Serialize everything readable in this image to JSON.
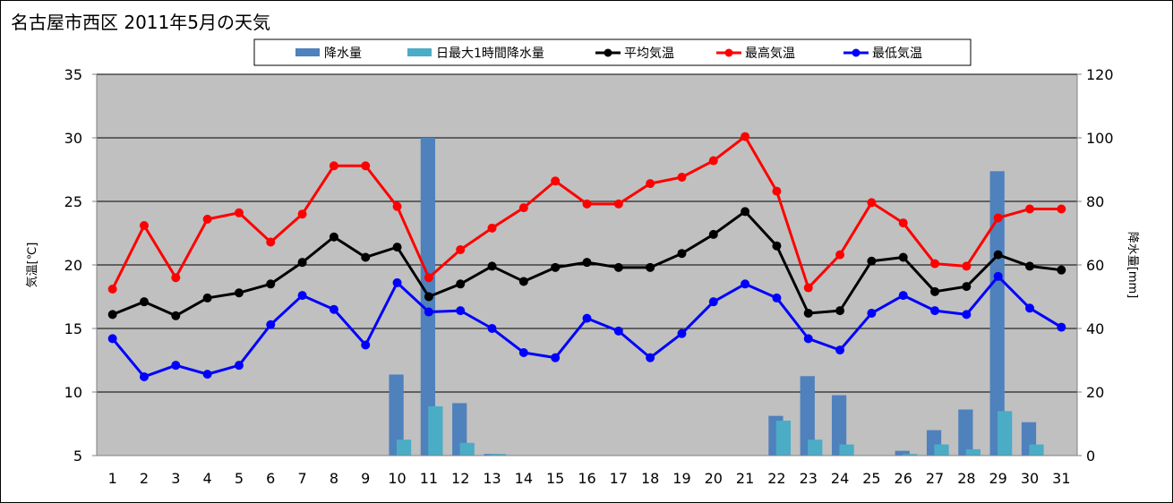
{
  "chart_data": {
    "type": "combo-bar-line",
    "title": "名古屋市西区  2011年5月の天気",
    "categories": [
      "1",
      "2",
      "3",
      "4",
      "5",
      "6",
      "7",
      "8",
      "9",
      "10",
      "11",
      "12",
      "13",
      "14",
      "15",
      "16",
      "17",
      "18",
      "19",
      "20",
      "21",
      "22",
      "23",
      "24",
      "25",
      "26",
      "27",
      "28",
      "29",
      "30",
      "31"
    ],
    "y_left": {
      "label": "気温[℃]",
      "range": [
        5,
        35
      ],
      "ticks": [
        "5",
        "10",
        "15",
        "20",
        "25",
        "30",
        "35"
      ]
    },
    "y_right": {
      "label": "降水量[mm]",
      "range": [
        0,
        120
      ],
      "ticks": [
        "0",
        "20",
        "40",
        "60",
        "80",
        "100",
        "120"
      ]
    },
    "grid": true,
    "legend_position": "top",
    "bar_series": [
      {
        "name": "降水量",
        "color": "#4f81bd",
        "axis": "right",
        "values": [
          0,
          0,
          0,
          0,
          0,
          0,
          0,
          0,
          0,
          25.5,
          100,
          16.5,
          0.5,
          0,
          0,
          0,
          0,
          0,
          0,
          0,
          0,
          12.5,
          25,
          19,
          0,
          1.5,
          8,
          14.5,
          89.5,
          10.5,
          0
        ]
      },
      {
        "name": "日最大1時間降水量",
        "color": "#4bacc6",
        "axis": "right",
        "values": [
          0,
          0,
          0,
          0,
          0,
          0,
          0,
          0,
          0,
          5,
          15.5,
          4,
          0.5,
          0,
          0,
          0,
          0,
          0,
          0,
          0,
          0,
          11,
          5,
          3.5,
          0,
          0.5,
          3.5,
          2,
          14,
          3.5,
          0
        ]
      }
    ],
    "line_series": [
      {
        "name": "平均気温",
        "color": "#000000",
        "axis": "left",
        "values": [
          16.1,
          17.1,
          16.0,
          17.4,
          17.8,
          18.5,
          20.2,
          22.2,
          20.6,
          21.4,
          17.5,
          18.5,
          19.9,
          18.7,
          19.8,
          20.2,
          19.8,
          19.8,
          20.9,
          22.4,
          24.2,
          21.5,
          16.2,
          16.4,
          20.3,
          20.6,
          17.9,
          18.3,
          20.8,
          19.9,
          19.6
        ]
      },
      {
        "name": "最高気温",
        "color": "#ff0000",
        "axis": "left",
        "values": [
          18.1,
          23.1,
          19.0,
          23.6,
          24.1,
          21.8,
          24.0,
          27.8,
          27.8,
          24.6,
          19.0,
          21.2,
          22.9,
          24.5,
          26.6,
          24.8,
          24.8,
          26.4,
          26.9,
          28.2,
          30.1,
          25.8,
          18.2,
          20.8,
          24.9,
          23.3,
          20.1,
          19.9,
          23.7,
          24.4,
          24.4
        ]
      },
      {
        "name": "最低気温",
        "color": "#0000ff",
        "axis": "left",
        "values": [
          14.2,
          11.2,
          12.1,
          11.4,
          12.1,
          15.3,
          17.6,
          16.5,
          13.7,
          18.6,
          16.3,
          16.4,
          15.0,
          13.1,
          12.7,
          15.8,
          14.8,
          12.7,
          14.6,
          17.1,
          18.5,
          17.4,
          14.2,
          13.3,
          16.2,
          17.6,
          16.4,
          16.1,
          19.1,
          16.6,
          15.1
        ]
      }
    ]
  }
}
